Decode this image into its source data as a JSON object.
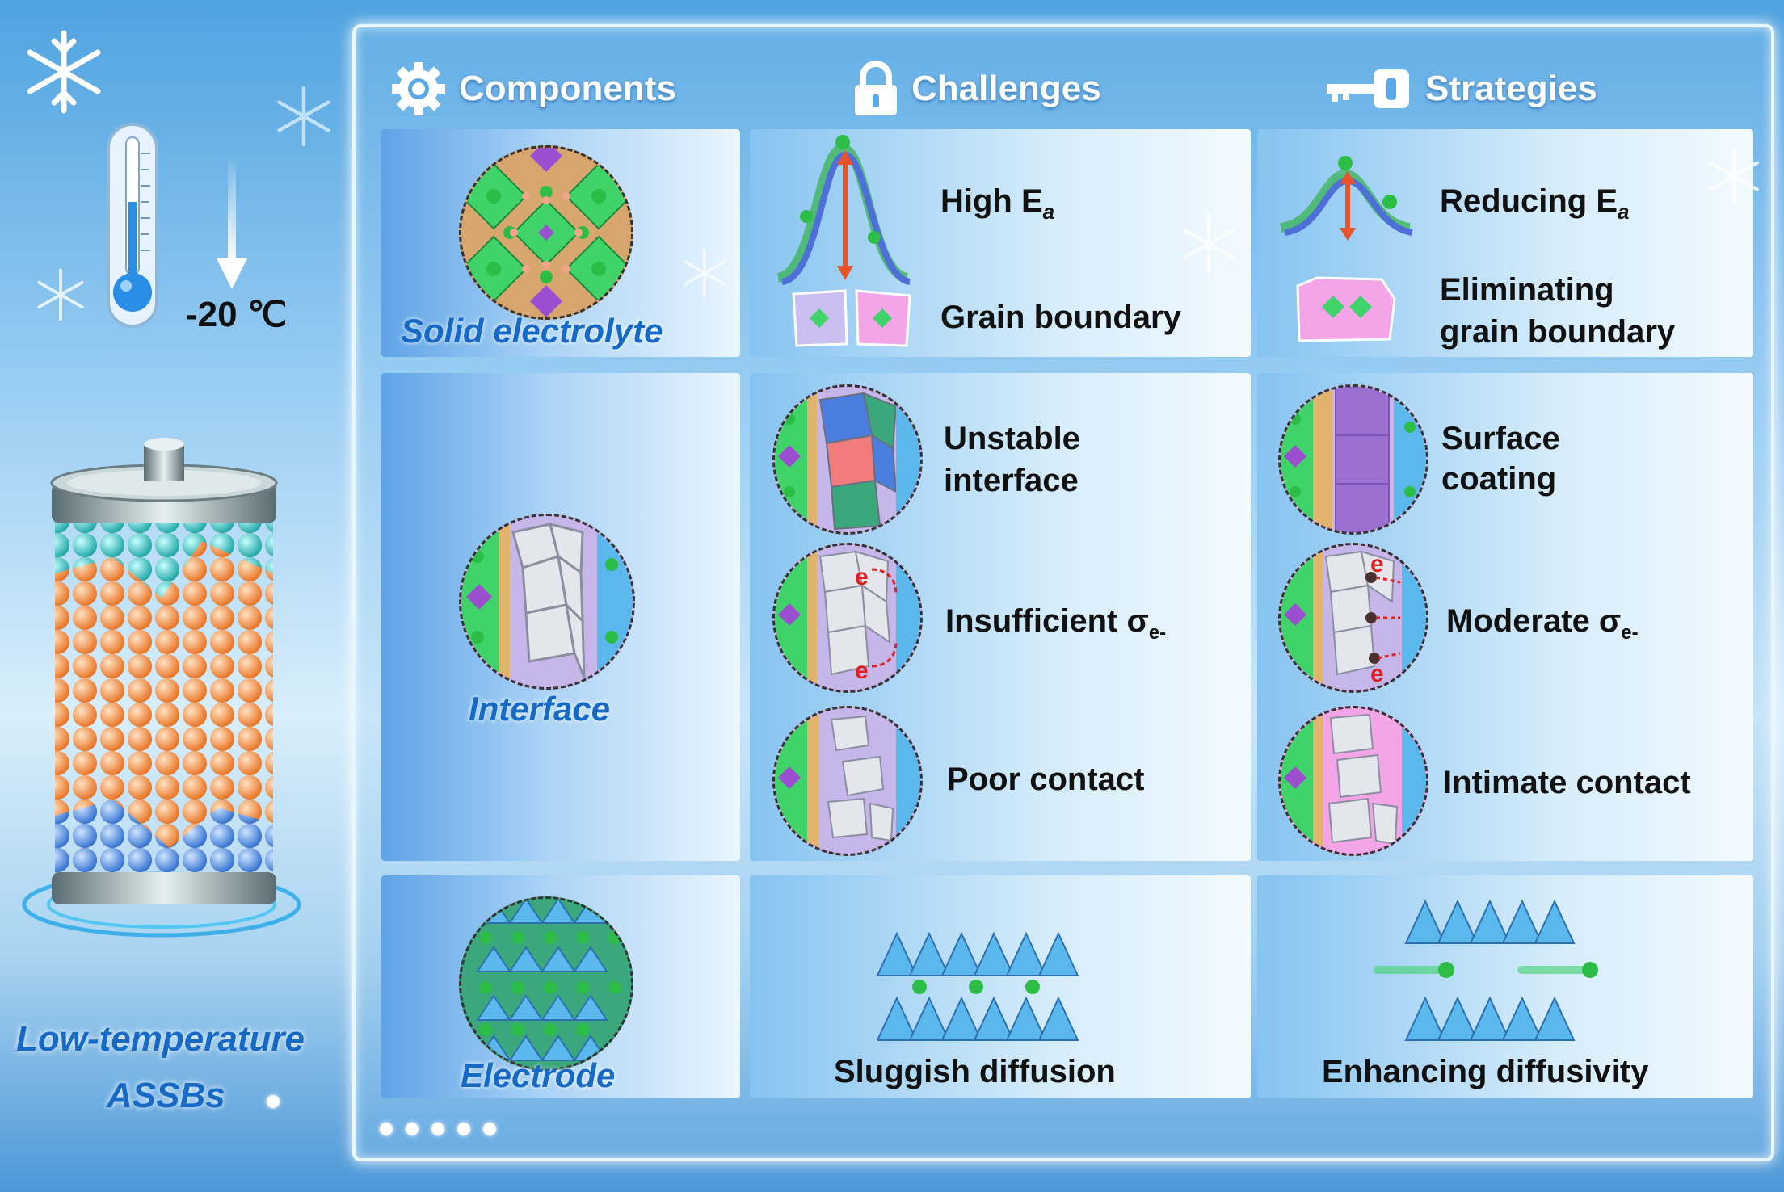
{
  "left_panel": {
    "temperature": "-20 ℃",
    "title_line1": "Low-temperature",
    "title_line2": "ASSBs"
  },
  "headers": {
    "components": "Components",
    "challenges": "Challenges",
    "strategies": "Strategies"
  },
  "rows": {
    "solid_electrolyte": {
      "category": "Solid electrolyte",
      "challenges": [
        "High E",
        "a",
        "Grain boundary"
      ],
      "strategies": [
        "Reducing E",
        "a",
        "Eliminating",
        "grain boundary"
      ]
    },
    "interface": {
      "category": "Interface",
      "challenge_1_line1": "Unstable",
      "challenge_1_line2": "interface",
      "challenge_2": "Insufficient σ",
      "challenge_2_sub": "e-",
      "challenge_3": "Poor contact",
      "strategy_1_line1": "Surface",
      "strategy_1_line2": "coating",
      "strategy_2": "Moderate σ",
      "strategy_2_sub": "e-",
      "strategy_3": "Intimate contact",
      "electron": "e"
    },
    "electrode": {
      "category": "Electrode",
      "challenge": "Sluggish diffusion",
      "strategy": "Enhancing diffusivity"
    }
  },
  "colors": {
    "category_blue": "#1769c6",
    "arrow_red": "#e8532a",
    "li_green": "#3ad14a",
    "octahedron_green": "#3fd36a",
    "cathode_blue": "#5ab8ec",
    "battery_orange": "#f5964a",
    "battery_teal": "#3cc3c0"
  },
  "icons": [
    "snowflake-icon",
    "thermometer-icon",
    "down-arrow-icon",
    "gear-icon",
    "lock-icon",
    "key-icon"
  ],
  "pager": {
    "dots": 5
  }
}
